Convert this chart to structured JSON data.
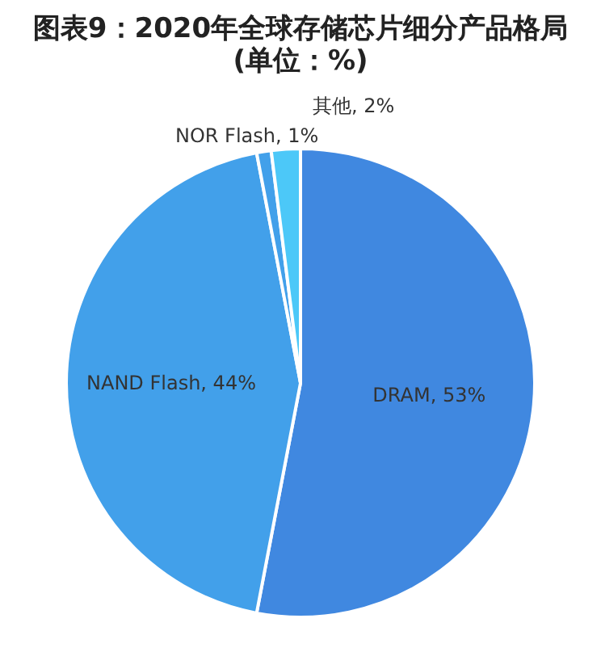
{
  "chart_data": {
    "type": "pie",
    "title": "图表9：2020年全球存储芯片细分产品格局(单位：%)",
    "categories": [
      "DRAM",
      "NAND Flash",
      "NOR Flash",
      "其他"
    ],
    "values": [
      53,
      44,
      1,
      2
    ],
    "colors": [
      "#4088e0",
      "#42a0ea",
      "#42a0ea",
      "#4cc8f8"
    ],
    "value_labels": [
      "53%",
      "44%",
      "1%",
      "2%"
    ]
  }
}
